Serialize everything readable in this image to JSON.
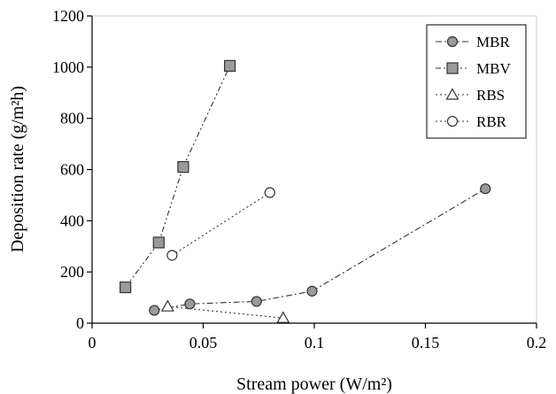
{
  "chart_data": {
    "type": "scatter",
    "title": "",
    "xlabel": "Stream power (W/m²)",
    "ylabel": "Deposition rate (g/m²h)",
    "xlim": [
      0,
      0.2
    ],
    "ylim": [
      0,
      1200
    ],
    "xticks": [
      0,
      0.05,
      0.1,
      0.15,
      0.2
    ],
    "xtick_labels": [
      "0",
      "0.05",
      "0.1",
      "0.15",
      "0.2"
    ],
    "yticks": [
      0,
      200,
      400,
      600,
      800,
      1000,
      1200
    ],
    "ytick_labels": [
      "0",
      "200",
      "400",
      "600",
      "800",
      "1000",
      "1200"
    ],
    "grid": false,
    "legend_position": "top-right",
    "series": [
      {
        "name": "MBR",
        "marker": "circle",
        "marker_fill": "#9a9a9a",
        "line_style": "dash-dot",
        "points": [
          [
            0.028,
            50
          ],
          [
            0.044,
            75
          ],
          [
            0.074,
            85
          ],
          [
            0.099,
            125
          ],
          [
            0.177,
            525
          ]
        ]
      },
      {
        "name": "MBV",
        "marker": "square",
        "marker_fill": "#9a9a9a",
        "line_style": "dash-dot-dot",
        "points": [
          [
            0.015,
            140
          ],
          [
            0.03,
            315
          ],
          [
            0.041,
            610
          ],
          [
            0.062,
            1005
          ]
        ]
      },
      {
        "name": "RBS",
        "marker": "triangle",
        "marker_fill": "#ffffff",
        "line_style": "dotted",
        "points": [
          [
            0.034,
            65
          ],
          [
            0.086,
            20
          ]
        ]
      },
      {
        "name": "RBR",
        "marker": "circle",
        "marker_fill": "#ffffff",
        "line_style": "dotted",
        "points": [
          [
            0.036,
            265
          ],
          [
            0.08,
            510
          ]
        ]
      }
    ]
  }
}
